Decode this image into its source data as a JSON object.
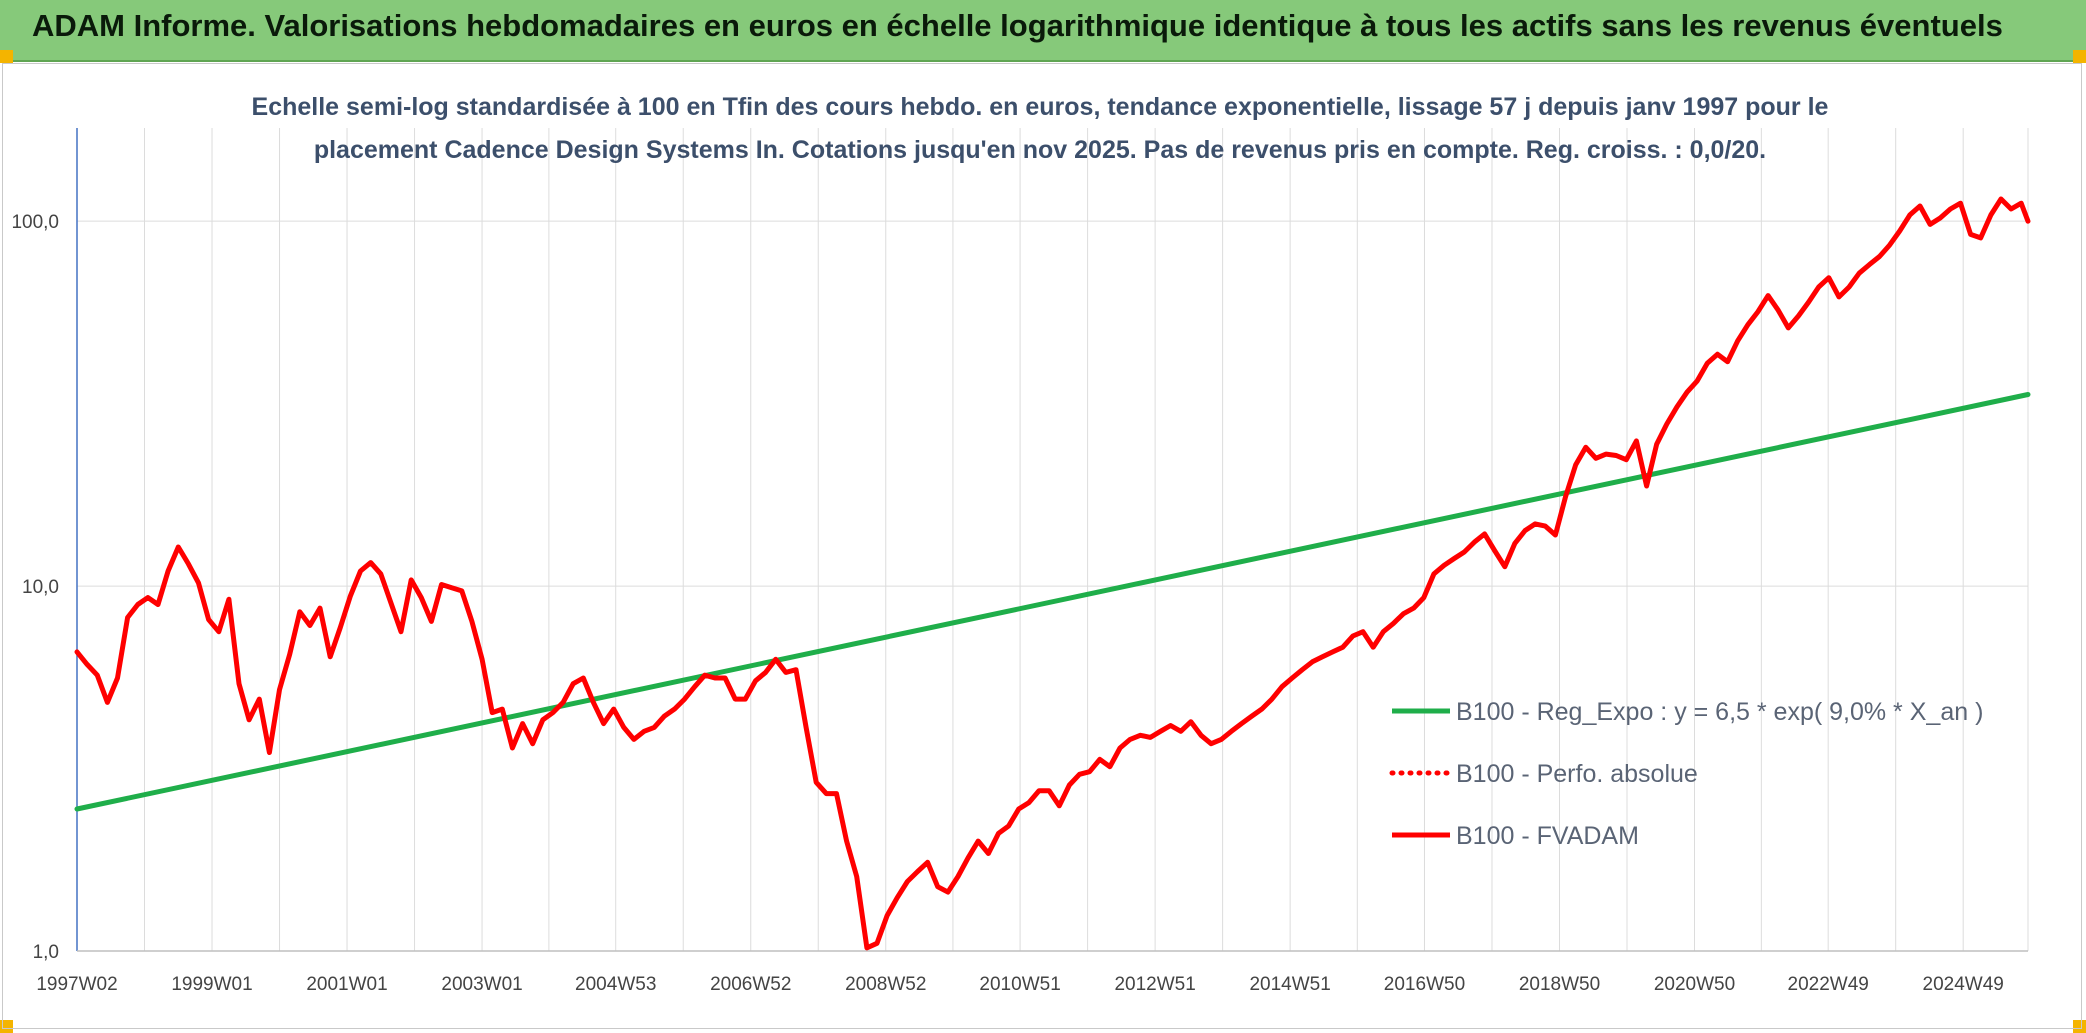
{
  "banner": {
    "title": "ADAM Informe. Valorisations hebdomadaires en euros en échelle logarithmique identique à tous les actifs sans les revenus éventuels",
    "background": "#86c97a",
    "corner_color": "#f4b400"
  },
  "chart_data": {
    "type": "line",
    "title_lines": [
      "Echelle semi-log standardisée à 100 en Tfin des cours hebdo. en euros, tendance exponentielle, lissage 57 j depuis janv 1997 pour le",
      "placement Cadence Design Systems In. Cotations jusqu'en nov 2025. Pas de revenus pris en compte. Reg. croiss. : 0,0/20."
    ],
    "y_scale": "log",
    "ylim": [
      1,
      180
    ],
    "y_ticks": [
      {
        "value": 1,
        "label": "1,0"
      },
      {
        "value": 10,
        "label": "10,0"
      },
      {
        "value": 100,
        "label": "100,0"
      }
    ],
    "xlim": [
      1997.0,
      2025.9
    ],
    "x_ticks": [
      {
        "value": 1997.0,
        "label": "1997W02"
      },
      {
        "value": 1999.0,
        "label": "1999W01"
      },
      {
        "value": 2001.0,
        "label": "2001W01"
      },
      {
        "value": 2003.0,
        "label": "2003W01"
      },
      {
        "value": 2004.98,
        "label": "2004W53"
      },
      {
        "value": 2006.98,
        "label": "2006W52"
      },
      {
        "value": 2008.98,
        "label": "2008W52"
      },
      {
        "value": 2010.97,
        "label": "2010W51"
      },
      {
        "value": 2012.97,
        "label": "2012W51"
      },
      {
        "value": 2014.97,
        "label": "2014W51"
      },
      {
        "value": 2016.96,
        "label": "2016W50"
      },
      {
        "value": 2018.96,
        "label": "2018W50"
      },
      {
        "value": 2020.96,
        "label": "2020W50"
      },
      {
        "value": 2022.94,
        "label": "2022W49"
      },
      {
        "value": 2024.94,
        "label": "2024W49"
      }
    ],
    "grid": true,
    "legend_position": "right",
    "series": [
      {
        "name": "B100 - Reg_Expo : y = 6,5 * exp( 9,0% *  X_an )",
        "color": "#1fae4a",
        "style": "solid",
        "x": [
          1997.0,
          2025.9
        ],
        "y": [
          2.45,
          33.5
        ]
      },
      {
        "name": "B100 - Perfo. absolue",
        "color": "#ff0000",
        "style": "dotted",
        "x": [],
        "y": []
      },
      {
        "name": "B100 - FVADAM",
        "color": "#ff0000",
        "style": "solid",
        "x": [
          1997.0,
          1997.15,
          1997.3,
          1997.45,
          1997.6,
          1997.75,
          1997.9,
          1998.05,
          1998.2,
          1998.35,
          1998.5,
          1998.65,
          1998.8,
          1998.95,
          1999.1,
          1999.25,
          1999.4,
          1999.55,
          1999.7,
          1999.85,
          2000.0,
          2000.15,
          2000.3,
          2000.45,
          2000.6,
          2000.75,
          2000.9,
          2001.05,
          2001.2,
          2001.35,
          2001.5,
          2001.65,
          2001.8,
          2001.95,
          2002.1,
          2002.25,
          2002.4,
          2002.55,
          2002.7,
          2002.85,
          2003.0,
          2003.15,
          2003.3,
          2003.45,
          2003.6,
          2003.75,
          2003.9,
          2004.05,
          2004.2,
          2004.35,
          2004.5,
          2004.65,
          2004.8,
          2004.95,
          2005.1,
          2005.25,
          2005.4,
          2005.55,
          2005.7,
          2005.85,
          2006.0,
          2006.15,
          2006.3,
          2006.45,
          2006.6,
          2006.75,
          2006.9,
          2007.05,
          2007.2,
          2007.35,
          2007.5,
          2007.65,
          2007.8,
          2007.95,
          2008.1,
          2008.25,
          2008.4,
          2008.55,
          2008.7,
          2008.85,
          2009.0,
          2009.15,
          2009.3,
          2009.45,
          2009.6,
          2009.75,
          2009.9,
          2010.05,
          2010.2,
          2010.35,
          2010.5,
          2010.65,
          2010.8,
          2010.95,
          2011.1,
          2011.25,
          2011.4,
          2011.55,
          2011.7,
          2011.85,
          2012.0,
          2012.15,
          2012.3,
          2012.45,
          2012.6,
          2012.75,
          2012.9,
          2013.05,
          2013.2,
          2013.35,
          2013.5,
          2013.65,
          2013.8,
          2013.95,
          2014.1,
          2014.25,
          2014.4,
          2014.55,
          2014.7,
          2014.85,
          2015.0,
          2015.15,
          2015.3,
          2015.45,
          2015.6,
          2015.75,
          2015.9,
          2016.05,
          2016.2,
          2016.35,
          2016.5,
          2016.65,
          2016.8,
          2016.95,
          2017.1,
          2017.25,
          2017.4,
          2017.55,
          2017.7,
          2017.85,
          2018.0,
          2018.15,
          2018.3,
          2018.45,
          2018.6,
          2018.75,
          2018.9,
          2019.05,
          2019.2,
          2019.35,
          2019.5,
          2019.65,
          2019.8,
          2019.95,
          2020.1,
          2020.25,
          2020.4,
          2020.55,
          2020.7,
          2020.85,
          2021.0,
          2021.15,
          2021.3,
          2021.45,
          2021.6,
          2021.75,
          2021.9,
          2022.05,
          2022.2,
          2022.35,
          2022.5,
          2022.65,
          2022.8,
          2022.95,
          2023.1,
          2023.25,
          2023.4,
          2023.55,
          2023.7,
          2023.85,
          2024.0,
          2024.15,
          2024.3,
          2024.45,
          2024.6,
          2024.75,
          2024.9,
          2025.05,
          2025.2,
          2025.35,
          2025.5,
          2025.65,
          2025.8,
          2025.9
        ],
        "y": [
          6.6,
          6.1,
          5.7,
          4.8,
          5.6,
          8.2,
          8.9,
          9.3,
          8.9,
          11.0,
          12.8,
          11.5,
          10.2,
          8.1,
          7.5,
          9.2,
          5.4,
          4.3,
          4.9,
          3.5,
          5.2,
          6.5,
          8.5,
          7.8,
          8.7,
          6.4,
          7.7,
          9.4,
          11.0,
          11.6,
          10.8,
          9.0,
          7.5,
          10.4,
          9.3,
          8.0,
          10.1,
          9.9,
          9.7,
          8.0,
          6.3,
          4.5,
          4.6,
          3.6,
          4.2,
          3.7,
          4.3,
          4.5,
          4.8,
          5.4,
          5.6,
          4.8,
          4.2,
          4.6,
          4.1,
          3.8,
          4.0,
          4.1,
          4.4,
          4.6,
          4.9,
          5.3,
          5.7,
          5.6,
          5.6,
          4.9,
          4.9,
          5.5,
          5.8,
          6.3,
          5.8,
          5.9,
          4.1,
          2.9,
          2.7,
          2.7,
          2.0,
          1.6,
          1.02,
          1.05,
          1.25,
          1.4,
          1.55,
          1.65,
          1.75,
          1.5,
          1.45,
          1.6,
          1.8,
          2.0,
          1.85,
          2.1,
          2.2,
          2.45,
          2.55,
          2.75,
          2.75,
          2.5,
          2.85,
          3.05,
          3.1,
          3.35,
          3.2,
          3.6,
          3.8,
          3.9,
          3.85,
          4.0,
          4.15,
          4.0,
          4.25,
          3.9,
          3.7,
          3.8,
          4.0,
          4.2,
          4.4,
          4.6,
          4.9,
          5.3,
          5.6,
          5.9,
          6.2,
          6.4,
          6.6,
          6.8,
          7.3,
          7.5,
          6.8,
          7.5,
          7.9,
          8.4,
          8.7,
          9.3,
          10.8,
          11.4,
          11.9,
          12.4,
          13.2,
          13.9,
          12.5,
          11.3,
          13.1,
          14.2,
          14.8,
          14.6,
          13.8,
          17.6,
          21.5,
          24.0,
          22.4,
          23.0,
          22.8,
          22.2,
          25.0,
          18.8,
          24.5,
          27.8,
          31.0,
          34.0,
          36.5,
          40.8,
          43.2,
          41.2,
          47.0,
          52.0,
          56.5,
          62.5,
          57.0,
          51.0,
          55.0,
          60.0,
          66.0,
          70.0,
          62.0,
          66.0,
          72.0,
          76.0,
          80.0,
          86.0,
          94.0,
          104.0,
          110.0,
          98.0,
          102.0,
          108.0,
          112.0,
          92.0,
          90.0,
          104.0,
          115.0,
          108.0,
          112.0,
          100.0
        ]
      }
    ]
  }
}
